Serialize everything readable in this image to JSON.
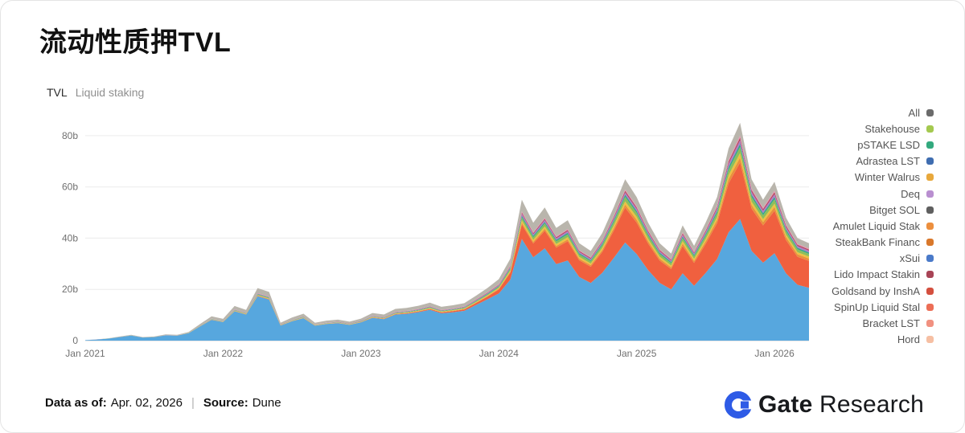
{
  "page": {
    "title": "流动性质押TVL"
  },
  "chart_header": {
    "tab": "TVL",
    "subtitle": "Liquid staking"
  },
  "legend": {
    "items": [
      {
        "label": "All",
        "color": "#6b6b6b"
      },
      {
        "label": "Stakehouse",
        "color": "#a4c94f"
      },
      {
        "label": "pSTAKE LSD",
        "color": "#33a97e"
      },
      {
        "label": "Adrastea LST",
        "color": "#3f6db0"
      },
      {
        "label": "Winter Walrus",
        "color": "#e8a83c"
      },
      {
        "label": "Deq",
        "color": "#b98fd0"
      },
      {
        "label": "Bitget SOL",
        "color": "#5f5f5f"
      },
      {
        "label": "Amulet Liquid Stak",
        "color": "#ec8f3e"
      },
      {
        "label": "SteakBank Financ",
        "color": "#d9782b"
      },
      {
        "label": "xSui",
        "color": "#4a7ac9"
      },
      {
        "label": "Lido Impact Stakin",
        "color": "#a84456"
      },
      {
        "label": "Goldsand by InshA",
        "color": "#d44f3e"
      },
      {
        "label": "SpinUp Liquid Stal",
        "color": "#ec6e56"
      },
      {
        "label": "Bracket LST",
        "color": "#f19180"
      },
      {
        "label": "Hord",
        "color": "#f6bfa3"
      }
    ]
  },
  "footer": {
    "data_as_of_label": "Data as of:",
    "data_as_of_value": "Apr. 02, 2026",
    "separator": "|",
    "source_label": "Source:",
    "source_value": "Dune",
    "brand_bold": "Gate",
    "brand_regular": "Research"
  },
  "chart_data": {
    "type": "area",
    "stacked": true,
    "title": "流动性质押TVL",
    "subtitle": "Liquid staking",
    "unit": "USD billions (b)",
    "x_start": "Jan 2021",
    "x_end": "Apr 2026",
    "points_per_month": 1,
    "x_tick_labels": [
      "Jan 2021",
      "Jan 2022",
      "Jan 2023",
      "Jan 2024",
      "Jan 2025",
      "Jan 2026"
    ],
    "x_tick_indices": [
      0,
      12,
      24,
      36,
      48,
      60
    ],
    "y_tick_labels": [
      "0",
      "20b",
      "40b",
      "60b",
      "80b"
    ],
    "y_tick_values": [
      0,
      20,
      40,
      60,
      80
    ],
    "ylim": [
      0,
      90
    ],
    "grid": "horizontal",
    "legend_position": "right",
    "total_tvl_b": [
      0.2,
      0.5,
      0.9,
      1.6,
      2.3,
      1.4,
      1.6,
      2.4,
      2.3,
      3.4,
      6.5,
      9.5,
      8.5,
      13.5,
      12,
      20.5,
      19,
      7,
      9,
      10.5,
      7,
      7.8,
      8.2,
      7.4,
      8.6,
      10.8,
      10.2,
      12.4,
      12.8,
      13.6,
      14.8,
      13.2,
      13.8,
      14.6,
      17.5,
      20.5,
      24,
      32,
      55,
      46,
      52,
      44,
      47,
      38,
      35,
      42,
      52,
      63,
      56,
      46,
      38,
      34,
      45,
      37,
      46,
      56,
      75,
      85,
      63,
      55,
      62,
      48,
      40,
      38
    ],
    "bands": [
      {
        "name": "primary-blue",
        "color": "#57a7de",
        "keyframes": [
          [
            0,
            0.88
          ],
          [
            11,
            0.86
          ],
          [
            24,
            0.84
          ],
          [
            35,
            0.8
          ],
          [
            38,
            0.7
          ],
          [
            47,
            0.62
          ],
          [
            57,
            0.56
          ],
          [
            63,
            0.55
          ]
        ]
      },
      {
        "name": "secondary-red",
        "color": "#f0603f",
        "keyframes": [
          [
            0,
            0.002
          ],
          [
            24,
            0.01
          ],
          [
            30,
            0.02
          ],
          [
            35,
            0.05
          ],
          [
            38,
            0.1
          ],
          [
            42,
            0.16
          ],
          [
            47,
            0.22
          ],
          [
            52,
            0.24
          ],
          [
            57,
            0.26
          ],
          [
            63,
            0.28
          ]
        ]
      },
      {
        "name": "tertiary-orange",
        "color": "#e9913c",
        "keyframes": [
          [
            0,
            0.002
          ],
          [
            35,
            0.01
          ],
          [
            47,
            0.02
          ],
          [
            63,
            0.025
          ]
        ]
      },
      {
        "name": "band-yellow",
        "color": "#efc041",
        "keyframes": [
          [
            0,
            0.004
          ],
          [
            35,
            0.014
          ],
          [
            47,
            0.02
          ],
          [
            63,
            0.02
          ]
        ]
      },
      {
        "name": "band-green",
        "color": "#8dbe5a",
        "keyframes": [
          [
            0,
            0.008
          ],
          [
            35,
            0.018
          ],
          [
            47,
            0.028
          ],
          [
            63,
            0.028
          ]
        ]
      },
      {
        "name": "band-teal",
        "color": "#35a58c",
        "keyframes": [
          [
            0,
            0.005
          ],
          [
            35,
            0.012
          ],
          [
            63,
            0.016
          ]
        ]
      },
      {
        "name": "band-purple",
        "color": "#af7cc8",
        "keyframes": [
          [
            0,
            0.005
          ],
          [
            35,
            0.013
          ],
          [
            63,
            0.018
          ]
        ]
      },
      {
        "name": "band-maroon",
        "color": "#b04556",
        "keyframes": [
          [
            0,
            0.003
          ],
          [
            35,
            0.008
          ],
          [
            63,
            0.012
          ]
        ]
      },
      {
        "name": "band-pink",
        "color": "#e78fb0",
        "keyframes": [
          [
            0,
            0.003
          ],
          [
            35,
            0.007
          ],
          [
            63,
            0.01
          ]
        ]
      },
      {
        "name": "top-gray",
        "color": "#b9b5ac",
        "keyframes": [
          [
            0,
            0.09
          ],
          [
            24,
            0.1
          ],
          [
            35,
            0.085
          ],
          [
            47,
            0.065
          ],
          [
            63,
            0.055
          ]
        ]
      }
    ]
  }
}
